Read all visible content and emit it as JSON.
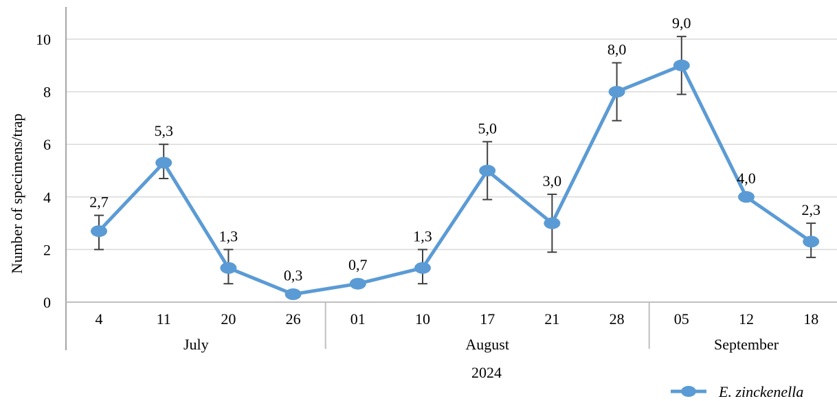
{
  "chart_data": {
    "type": "line",
    "title": "",
    "ylabel": "Number of specimens/trap",
    "xlabel": "2024",
    "ylim": [
      0,
      10
    ],
    "yticks": [
      0,
      2,
      4,
      6,
      8,
      10
    ],
    "grid": true,
    "legend_position": "bottom-right",
    "categories": [
      "4",
      "11",
      "20",
      "26",
      "01",
      "10",
      "17",
      "21",
      "28",
      "05",
      "12",
      "18"
    ],
    "groups": [
      {
        "label": "July",
        "count": 4
      },
      {
        "label": "August",
        "count": 5
      },
      {
        "label": "September",
        "count": 3
      }
    ],
    "series": [
      {
        "name": "E. zinckenella",
        "color": "#5B9BD5",
        "values": [
          2.7,
          5.3,
          1.3,
          0.3,
          0.7,
          1.3,
          5.0,
          3.0,
          8.0,
          9.0,
          4.0,
          2.3
        ],
        "data_labels": [
          "2,7",
          "5,3",
          "1,3",
          "0,3",
          "0,7",
          "1,3",
          "5,0",
          "3,0",
          "8,0",
          "9,0",
          "4,0",
          "2,3"
        ],
        "error_low": [
          2.0,
          4.7,
          0.7,
          null,
          null,
          0.7,
          3.9,
          1.9,
          6.9,
          7.9,
          null,
          1.7
        ],
        "error_high": [
          3.3,
          6.0,
          2.0,
          null,
          null,
          2.0,
          6.1,
          4.1,
          9.1,
          10.1,
          null,
          3.0
        ]
      }
    ]
  }
}
